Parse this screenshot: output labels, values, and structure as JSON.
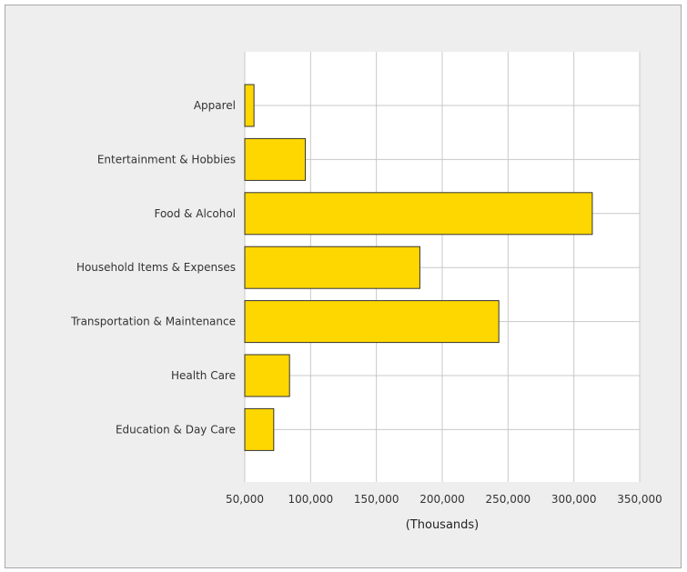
{
  "chart_data": {
    "type": "bar",
    "orientation": "horizontal",
    "categories": [
      "Apparel",
      "Entertainment & Hobbies",
      "Food & Alcohol",
      "Household Items & Expenses",
      "Transportation & Maintenance",
      "Health Care",
      "Education & Day Care"
    ],
    "values": [
      57000,
      96000,
      314000,
      183000,
      243000,
      84000,
      72000
    ],
    "title": "",
    "xlabel": "(Thousands)",
    "ylabel": "",
    "xlim": [
      50000,
      350000
    ],
    "xticks": [
      50000,
      100000,
      150000,
      200000,
      250000,
      300000,
      350000
    ],
    "xtick_labels": [
      "50,000",
      "100,000",
      "150,000",
      "200,000",
      "250,000",
      "300,000",
      "350,000"
    ],
    "grid": true,
    "legend": "none",
    "colors": {
      "bar_fill": "#FFD700",
      "bar_stroke": "#333333",
      "grid": "#c8c8c8",
      "plot_bg": "#ffffff",
      "frame_bg": "#eeeeee"
    }
  }
}
